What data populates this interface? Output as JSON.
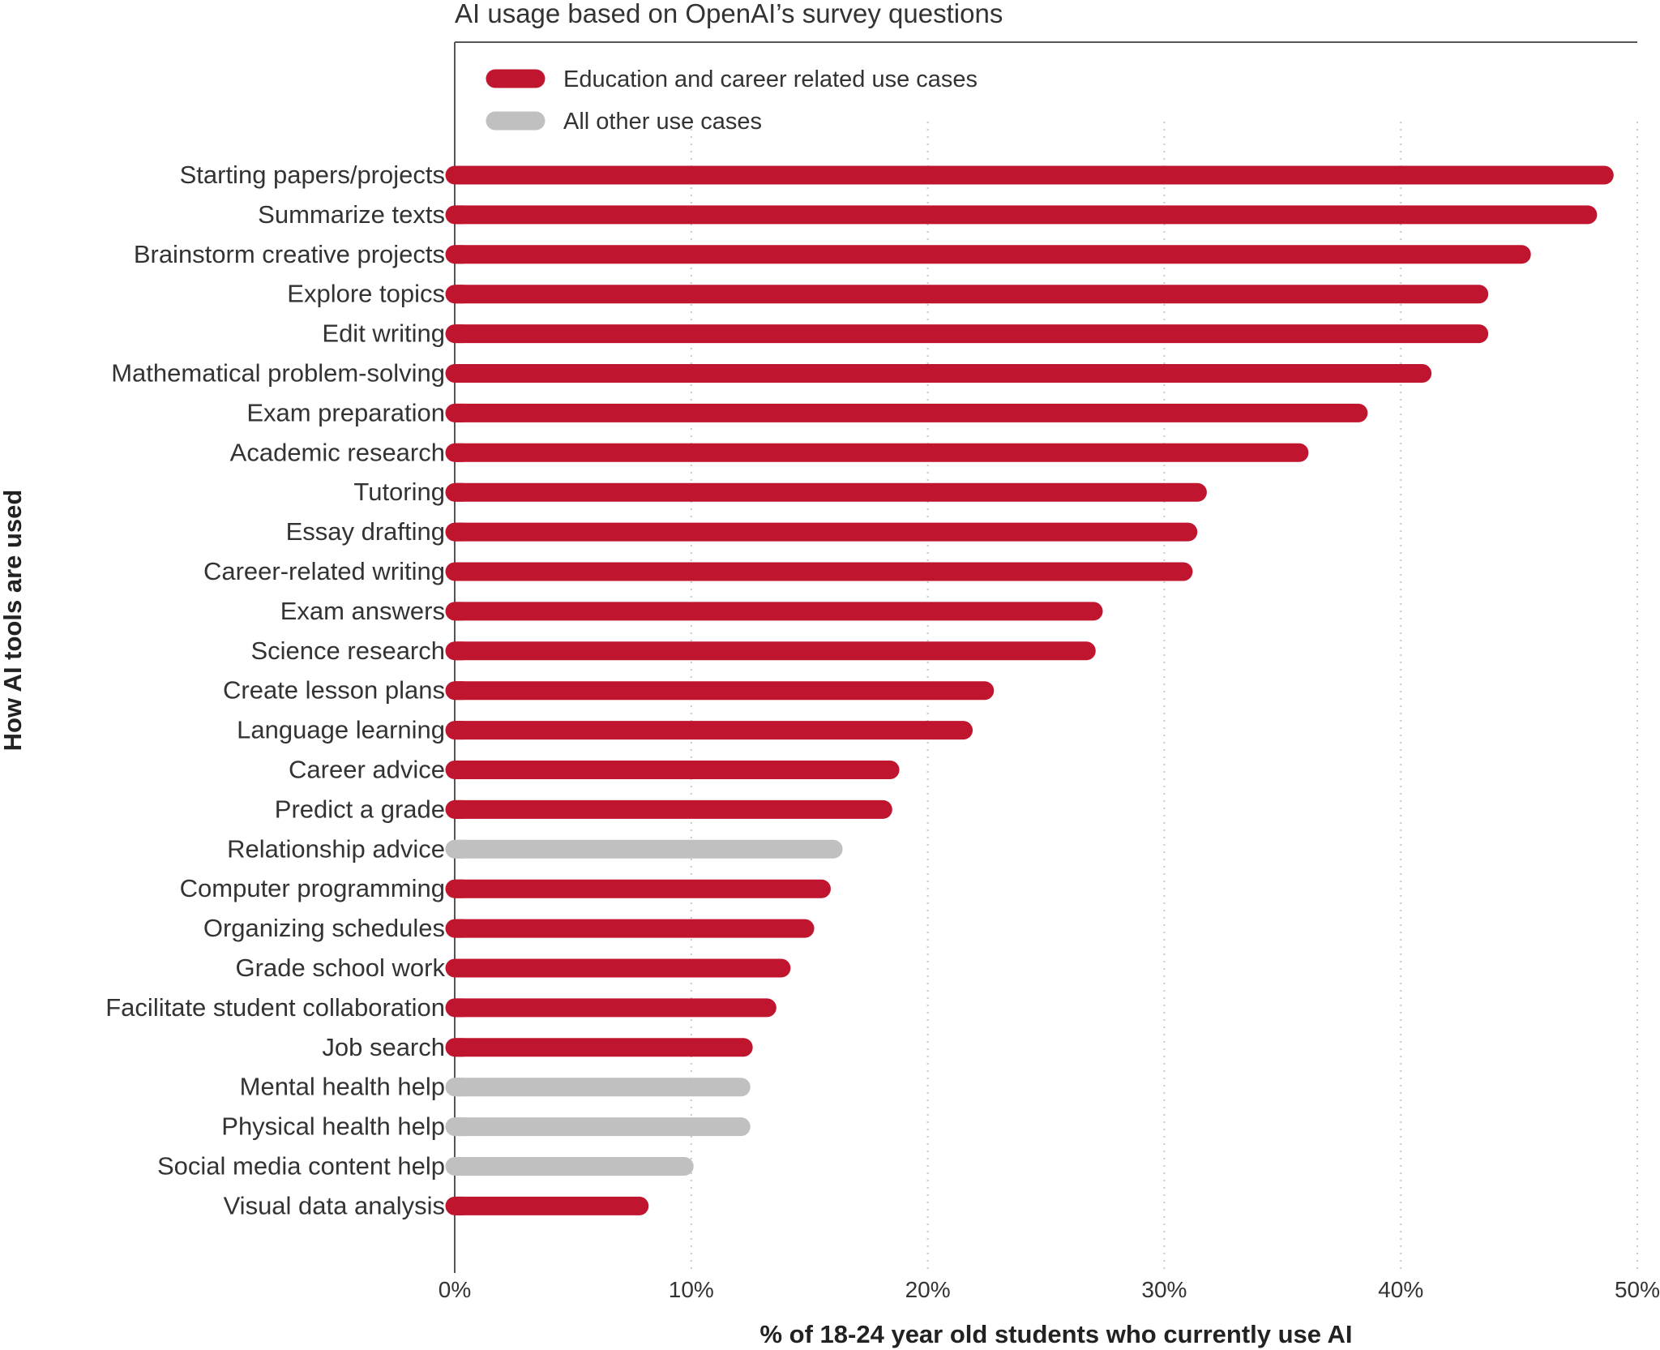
{
  "chart_data": {
    "type": "bar",
    "orientation": "horizontal",
    "title": "AI usage based on OpenAI’s survey questions",
    "xlabel": "% of 18-24 year old students who currently use AI",
    "ylabel": "How AI tools are used",
    "xlim": [
      0,
      50
    ],
    "x_ticks": [
      "0%",
      "10%",
      "20%",
      "30%",
      "40%",
      "50%"
    ],
    "grid": "vertical dotted",
    "legend_position": "top-left",
    "colors": {
      "education": "#c0152f",
      "other": "#c0c0c0"
    },
    "legend": [
      {
        "key": "education",
        "label": "Education and career related use cases"
      },
      {
        "key": "other",
        "label": "All other use cases"
      }
    ],
    "categories": [
      "Starting papers/projects",
      "Summarize texts",
      "Brainstorm creative projects",
      "Explore topics",
      "Edit writing",
      "Mathematical problem-solving",
      "Exam preparation",
      "Academic research",
      "Tutoring",
      "Essay drafting",
      "Career-related writing",
      "Exam answers",
      "Science research",
      "Create lesson plans",
      "Language learning",
      "Career advice",
      "Predict a grade",
      "Relationship advice",
      "Computer programming",
      "Organizing schedules",
      "Grade school work",
      "Facilitate student collaboration",
      "Job search",
      "Mental health help",
      "Physical health help",
      "Social media content help",
      "Visual data analysis"
    ],
    "values": [
      49,
      48.3,
      45.5,
      43.7,
      43.7,
      41.3,
      38.6,
      36.1,
      31.8,
      31.4,
      31.2,
      27.4,
      27.1,
      22.8,
      21.9,
      18.8,
      18.5,
      16.4,
      15.9,
      15.2,
      14.2,
      13.6,
      12.6,
      12.5,
      12.5,
      10.1,
      8.2
    ],
    "groups": [
      "education",
      "education",
      "education",
      "education",
      "education",
      "education",
      "education",
      "education",
      "education",
      "education",
      "education",
      "education",
      "education",
      "education",
      "education",
      "education",
      "education",
      "other",
      "education",
      "education",
      "education",
      "education",
      "education",
      "other",
      "other",
      "other",
      "education"
    ]
  }
}
